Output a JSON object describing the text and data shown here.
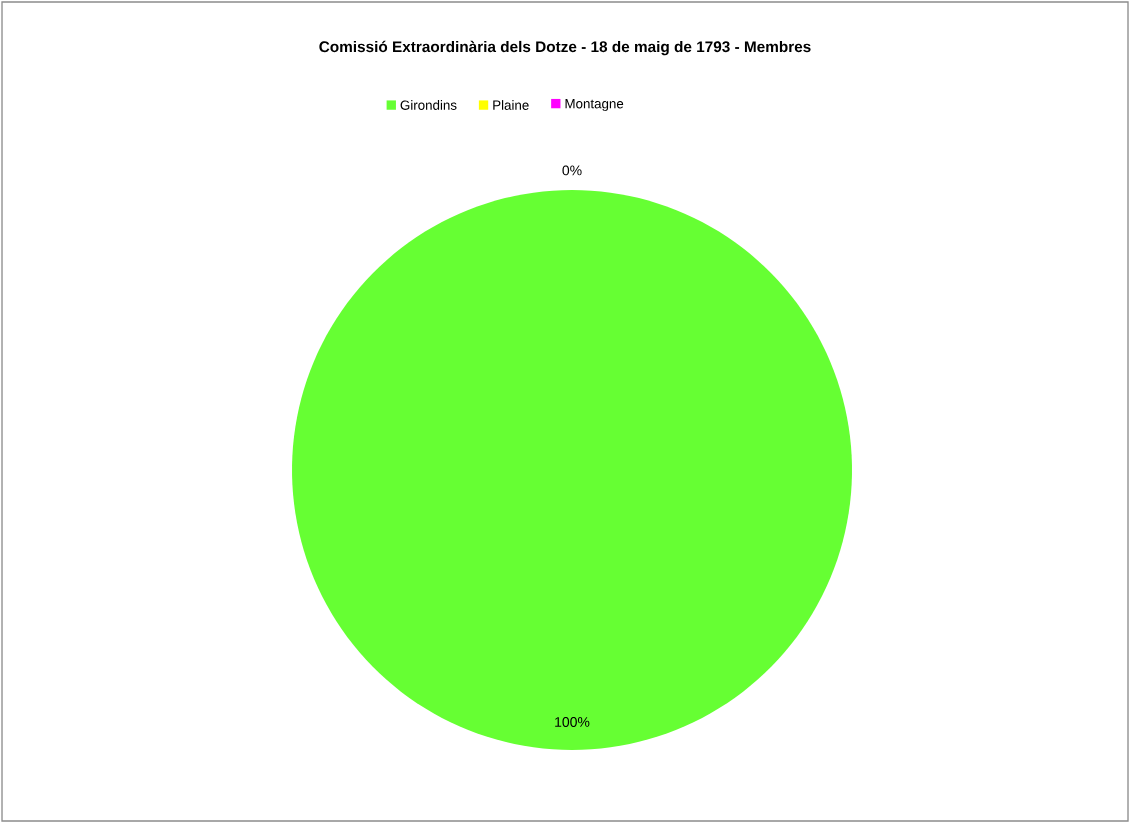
{
  "chart_data": {
    "type": "pie",
    "title": "Comissió Extraordinària dels Dotze - 18 de maig de 1793 - Membres",
    "categories": [
      "Girondins",
      "Plaine",
      "Montagne"
    ],
    "values": [
      100,
      0,
      0
    ],
    "colors": [
      "#66ff33",
      "#ffff00",
      "#ff00ff"
    ],
    "value_labels": [
      "100%",
      "0%",
      null
    ],
    "legend": "top"
  }
}
